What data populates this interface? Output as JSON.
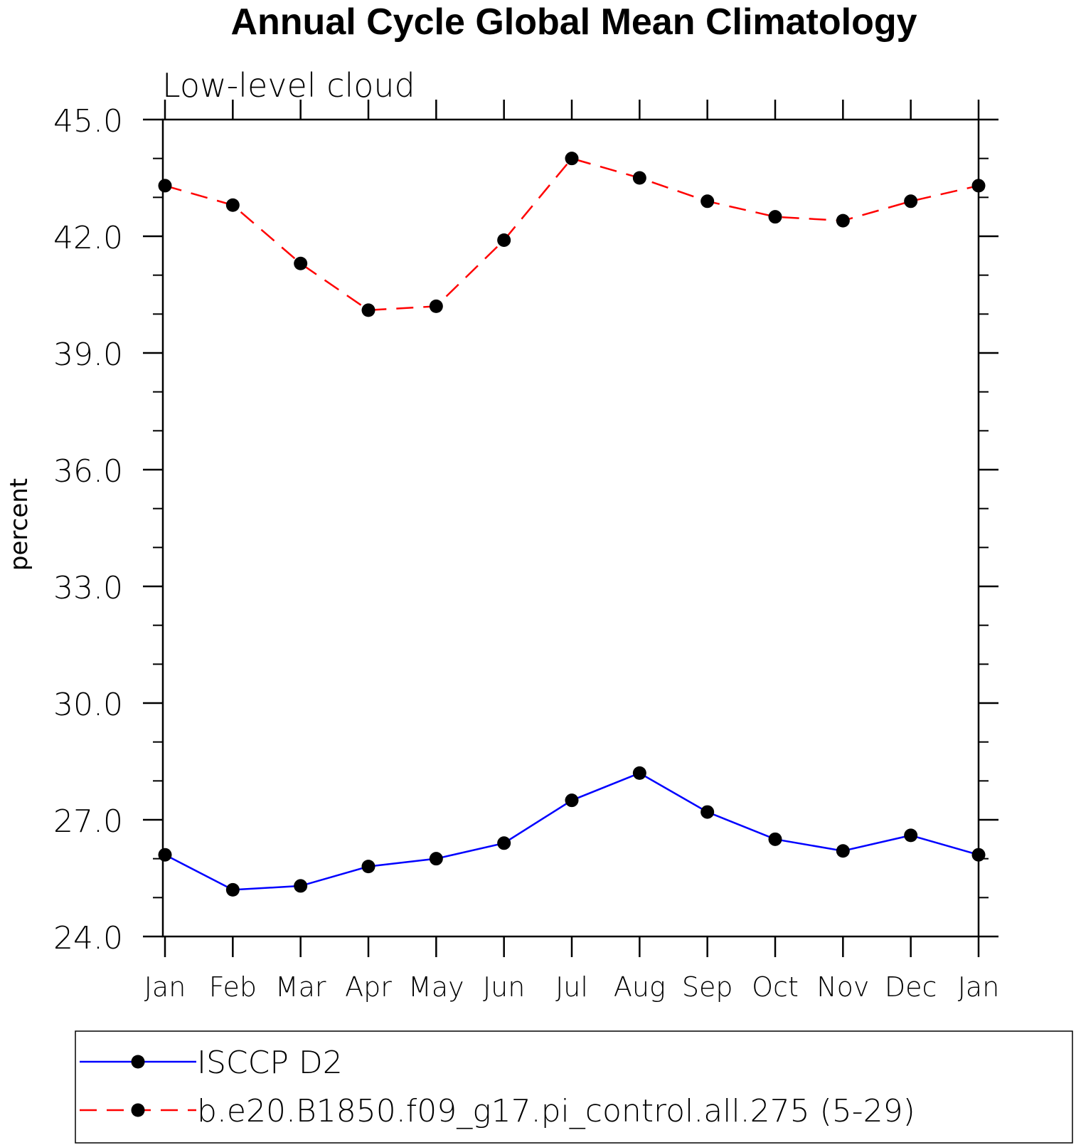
{
  "chart_data": {
    "type": "line",
    "title": "Annual Cycle Global Mean Climatology",
    "subtitle": "Low-level cloud",
    "ylabel": "percent",
    "xlabel": "",
    "categories": [
      "Jan",
      "Feb",
      "Mar",
      "Apr",
      "May",
      "Jun",
      "Jul",
      "Aug",
      "Sep",
      "Oct",
      "Nov",
      "Dec",
      "Jan"
    ],
    "ylim": [
      24.0,
      45.0
    ],
    "yticks": [
      "24.0",
      "27.0",
      "30.0",
      "33.0",
      "36.0",
      "39.0",
      "42.0",
      "45.0"
    ],
    "ytick_values": [
      24,
      27,
      30,
      33,
      36,
      39,
      42,
      45
    ],
    "y_minor_step": 1.0,
    "grid": false,
    "legend_position": "bottom",
    "series": [
      {
        "name": "ISCCP D2",
        "color": "#0000ff",
        "line_style": "solid",
        "marker": "filled-circle",
        "values": [
          26.1,
          25.2,
          25.3,
          25.8,
          26.0,
          26.4,
          27.5,
          28.2,
          27.2,
          26.5,
          26.2,
          26.6,
          26.1
        ]
      },
      {
        "name": "b.e20.B1850.f09_g17.pi_control.all.275 (5-29)",
        "color": "#ff0000",
        "line_style": "dashed",
        "marker": "filled-circle",
        "values": [
          43.3,
          42.8,
          41.3,
          40.1,
          40.2,
          41.9,
          44.0,
          43.5,
          42.9,
          42.5,
          42.4,
          42.9,
          43.3
        ]
      }
    ]
  }
}
